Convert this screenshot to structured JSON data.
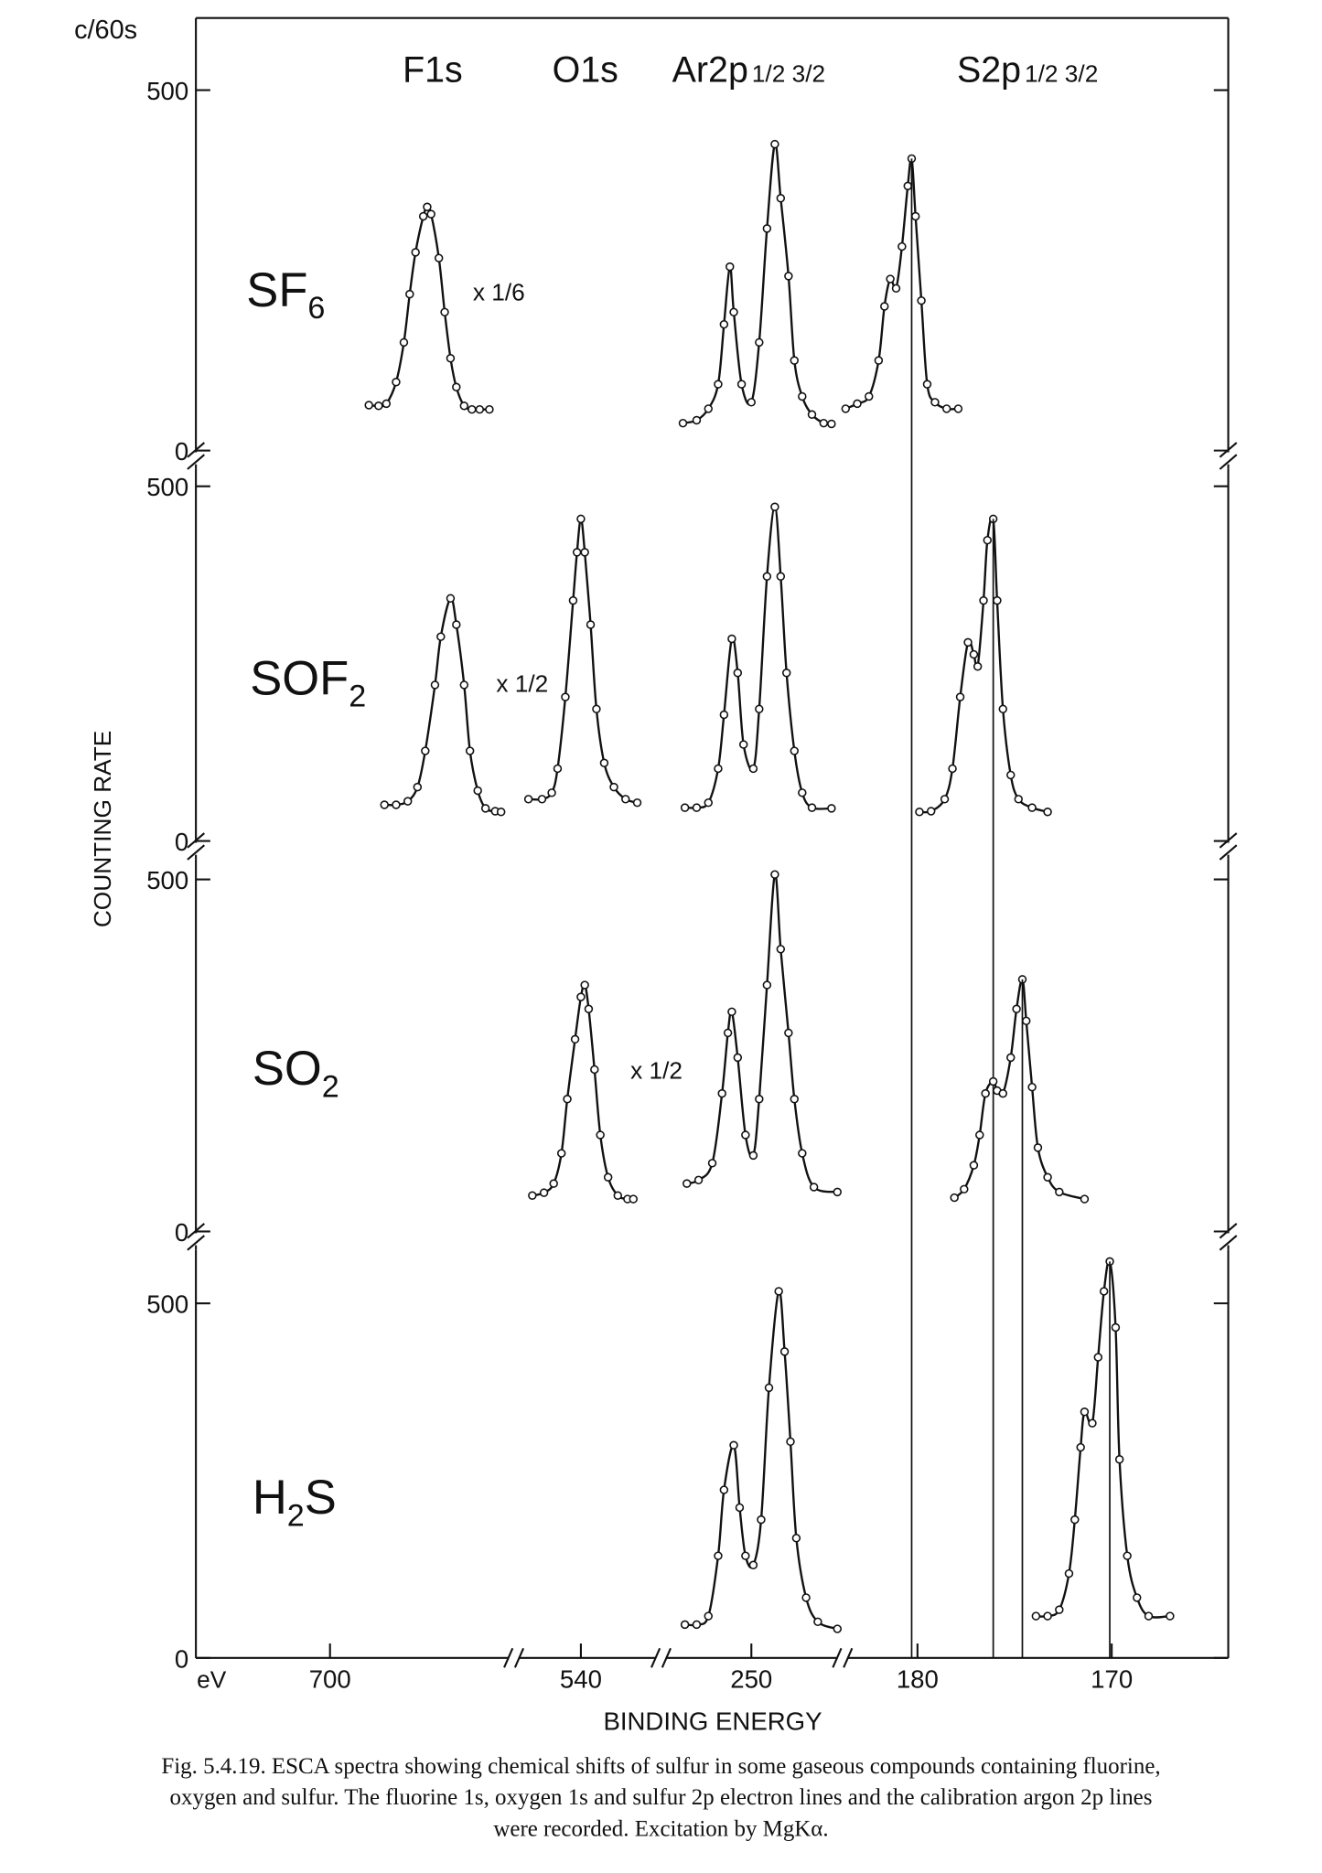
{
  "chart_data": {
    "type": "line",
    "y_unit": "c/60s",
    "y_label": "COUNTING RATE",
    "x_unit": "eV",
    "x_label": "BINDING ENERGY",
    "peak_labels": [
      {
        "text": "F1s"
      },
      {
        "text": "O1s"
      },
      {
        "text": "Ar2p",
        "sub": "1/2 3/2"
      },
      {
        "text": "S2p",
        "sub": "1/2 3/2"
      }
    ],
    "x_segments": [
      {
        "xlim": [
          706.9,
          690.7
        ],
        "xticks": [
          700
        ]
      },
      {
        "xlim": [
          543.3,
          536.0
        ],
        "xticks": [
          540
        ]
      },
      {
        "xlim": [
          254.5,
          245.4
        ],
        "xticks": [
          250
        ]
      },
      {
        "xlim": [
          183.8,
          164.0
        ],
        "xticks": [
          180,
          170
        ]
      }
    ],
    "panels": [
      {
        "label": [
          {
            "text": "SF"
          },
          {
            "text": "6",
            "sub": true
          }
        ],
        "ylim": [
          0,
          600
        ],
        "yticks": [
          0,
          500
        ],
        "series": [
          {
            "x": [
              698.0,
              697.5,
              697.1,
              696.6,
              696.2,
              695.9,
              695.6,
              695.2,
              695.0,
              694.8,
              694.4,
              694.1,
              693.8,
              693.5,
              693.1,
              692.7,
              692.3,
              691.8
            ],
            "values": [
              63,
              62,
              65,
              95,
              150,
              217,
              275,
              325,
              338,
              328,
              267,
              192,
              128,
              88,
              62,
              57,
              57,
              57
            ],
            "annotation": "x 1/6"
          },
          {
            "x": [
              253.5,
              252.8,
              252.2,
              251.7,
              251.4,
              251.1,
              250.9,
              250.5,
              250.0,
              249.6,
              249.2,
              248.8,
              248.5,
              248.1,
              247.8,
              247.4,
              246.9,
              246.3,
              245.9
            ],
            "values": [
              38,
              42,
              58,
              92,
              175,
              255,
              192,
              92,
              67,
              150,
              308,
              425,
              350,
              242,
              125,
              75,
              50,
              38,
              37
            ]
          },
          {
            "x": [
              183.7,
              183.1,
              182.5,
              182.0,
              181.7,
              181.4,
              181.1,
              180.8,
              180.5,
              180.3,
              180.1,
              179.8,
              179.5,
              179.1,
              178.5,
              177.9
            ],
            "values": [
              58,
              65,
              75,
              125,
              200,
              238,
              225,
              283,
              367,
              405,
              325,
              208,
              92,
              67,
              58,
              58
            ]
          }
        ]
      },
      {
        "label": [
          {
            "text": "SOF"
          },
          {
            "text": "2",
            "sub": true
          }
        ],
        "ylim": [
          0,
          525
        ],
        "yticks": [
          0,
          500
        ],
        "series": [
          {
            "x": [
              697.2,
              696.6,
              696.0,
              695.5,
              695.1,
              694.6,
              694.3,
              693.8,
              693.5,
              693.1,
              692.8,
              692.4,
              692.0,
              691.5,
              691.2
            ],
            "values": [
              51,
              51,
              56,
              76,
              127,
              220,
              288,
              342,
              305,
              220,
              127,
              71,
              46,
              42,
              41
            ],
            "annotation": "x 1/2"
          },
          {
            "x": [
              542.7,
              542.0,
              541.5,
              541.2,
              540.8,
              540.4,
              540.2,
              540.0,
              539.8,
              539.5,
              539.2,
              538.8,
              538.3,
              537.7,
              537.1
            ],
            "values": [
              59,
              59,
              68,
              102,
              203,
              339,
              407,
              454,
              407,
              305,
              186,
              110,
              76,
              59,
              54
            ]
          },
          {
            "x": [
              253.4,
              252.8,
              252.2,
              251.7,
              251.4,
              251.0,
              250.7,
              250.4,
              249.9,
              249.6,
              249.2,
              248.8,
              248.5,
              248.2,
              247.8,
              247.4,
              246.9,
              245.9
            ],
            "values": [
              47,
              47,
              54,
              102,
              178,
              285,
              237,
              136,
              102,
              186,
              373,
              471,
              373,
              237,
              127,
              68,
              47,
              46
            ]
          },
          {
            "x": [
              179.9,
              179.3,
              178.6,
              178.2,
              177.8,
              177.4,
              177.1,
              176.9,
              176.6,
              176.4,
              176.1,
              175.9,
              175.6,
              175.2,
              174.8,
              174.1,
              173.3
            ],
            "values": [
              41,
              42,
              59,
              102,
              203,
              280,
              263,
              246,
              339,
              424,
              454,
              339,
              186,
              93,
              59,
              47,
              41
            ]
          }
        ]
      },
      {
        "label": [
          {
            "text": "SO"
          },
          {
            "text": "2",
            "sub": true
          }
        ],
        "ylim": [
          0,
          529
        ],
        "yticks": [
          0,
          500
        ],
        "series": [
          {
            "x": [
              542.5,
              541.9,
              541.4,
              541.0,
              540.7,
              540.3,
              540.0,
              539.8,
              539.6,
              539.3,
              539.0,
              538.6,
              538.1,
              537.6,
              537.3
            ],
            "values": [
              51,
              55,
              68,
              111,
              188,
              273,
              333,
              350,
              316,
              230,
              137,
              77,
              51,
              46,
              46
            ],
            "annotation": "x 1/2"
          },
          {
            "x": [
              253.3,
              252.7,
              252.0,
              251.5,
              251.2,
              251.0,
              250.7,
              250.3,
              249.9,
              249.6,
              249.2,
              248.8,
              248.5,
              248.1,
              247.8,
              247.4,
              246.8,
              245.6
            ],
            "values": [
              68,
              73,
              97,
              196,
              282,
              312,
              247,
              137,
              108,
              188,
              350,
              507,
              401,
              282,
              188,
              111,
              63,
              56
            ]
          },
          {
            "x": [
              178.1,
              177.6,
              177.1,
              176.8,
              176.5,
              176.1,
              175.9,
              175.6,
              175.2,
              174.9,
              174.6,
              174.4,
              174.1,
              173.8,
              173.3,
              172.7,
              171.4
            ],
            "values": [
              48,
              60,
              94,
              137,
              196,
              213,
              200,
              196,
              247,
              316,
              358,
              299,
              205,
              119,
              77,
              56,
              46
            ]
          }
        ]
      },
      {
        "label": [
          {
            "text": "H"
          },
          {
            "text": "2",
            "sub": true
          },
          {
            "text": "S"
          }
        ],
        "ylim": [
          0,
          576
        ],
        "yticks": [
          0,
          500
        ],
        "series": [
          {
            "x": [
              253.4,
              252.8,
              252.2,
              251.7,
              251.4,
              250.9,
              250.6,
              250.3,
              249.9,
              249.5,
              249.1,
              248.6,
              248.3,
              248.0,
              247.7,
              247.2,
              246.6,
              245.6
            ],
            "values": [
              47,
              47,
              59,
              144,
              237,
              300,
              212,
              144,
              131,
              195,
              381,
              517,
              432,
              305,
              169,
              85,
              51,
              41
            ]
          },
          {
            "x": [
              173.9,
              173.3,
              172.7,
              172.2,
              171.9,
              171.6,
              171.4,
              171.0,
              170.7,
              170.4,
              170.1,
              169.8,
              169.6,
              169.2,
              168.7,
              168.1,
              167.0
            ],
            "values": [
              59,
              59,
              68,
              119,
              195,
              297,
              347,
              331,
              424,
              517,
              559,
              466,
              280,
              144,
              85,
              59,
              59
            ]
          }
        ]
      }
    ]
  },
  "caption": [
    "Fig. 5.4.19. ESCA spectra showing chemical shifts of sulfur in some gaseous compounds containing fluorine,",
    "oxygen and sulfur. The fluorine 1s, oxygen 1s and sulfur 2p electron lines and the calibration argon 2p lines",
    "were recorded. Excitation by MgKα."
  ]
}
